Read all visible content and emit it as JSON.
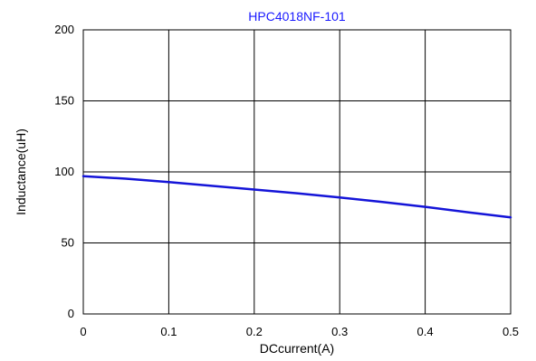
{
  "chart_data": {
    "type": "line",
    "title": "HPC4018NF-101",
    "xlabel": "DCcurrent(A)",
    "ylabel": "Inductance(uH)",
    "xlim": [
      0,
      0.5
    ],
    "ylim": [
      0,
      200
    ],
    "xticks": [
      0,
      0.1,
      0.2,
      0.3,
      0.4,
      0.5
    ],
    "xtick_labels": [
      "0",
      "0.1",
      "0.2",
      "0.3",
      "0.4",
      "0.5"
    ],
    "yticks": [
      0,
      50,
      100,
      150,
      200
    ],
    "ytick_labels": [
      "0",
      "50",
      "100",
      "150",
      "200"
    ],
    "grid": true,
    "series": [
      {
        "color": "#1414d8",
        "x": [
          0,
          0.05,
          0.1,
          0.15,
          0.2,
          0.25,
          0.3,
          0.35,
          0.4,
          0.45,
          0.5
        ],
        "y": [
          97,
          95.2,
          92.8,
          90.2,
          87.6,
          85,
          82,
          78.8,
          75.4,
          71.6,
          68
        ]
      }
    ]
  }
}
